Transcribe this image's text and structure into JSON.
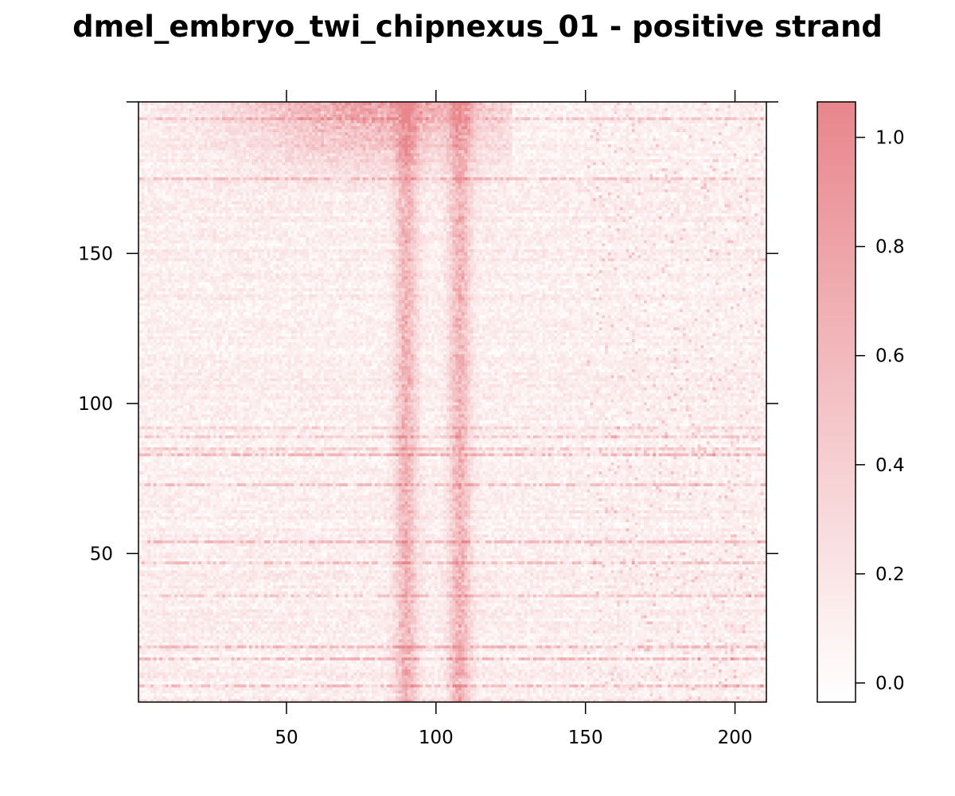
{
  "chart_data": {
    "type": "heatmap",
    "title": "dmel_embryo_twi_chipnexus_01 - positive strand",
    "xlabel": "",
    "ylabel": "",
    "x_range": [
      1,
      210
    ],
    "y_range": [
      1,
      200
    ],
    "x_ticks": [
      50,
      100,
      150,
      200
    ],
    "y_ticks": [
      50,
      100,
      150
    ],
    "colorbar": {
      "ticks": [
        0.0,
        0.2,
        0.4,
        0.6,
        0.8,
        1.0
      ],
      "tick_labels": [
        "0.0",
        "0.2",
        "0.4",
        "0.6",
        "0.8",
        "1.0"
      ],
      "range": [
        -0.035,
        1.065
      ],
      "color_low": "#ffffff",
      "color_high": "#e8868c"
    },
    "color_scale": [
      "#ffffff",
      "#e8868c"
    ],
    "pattern": {
      "description_of_values": "signal per row (y) and position (x), normalized 0-1",
      "peak_positions_x": [
        90,
        108
      ],
      "peak_width_x": 3.5,
      "high_signal_top_rows_x_range": [
        1,
        125
      ],
      "background_level": 0.12
    }
  }
}
